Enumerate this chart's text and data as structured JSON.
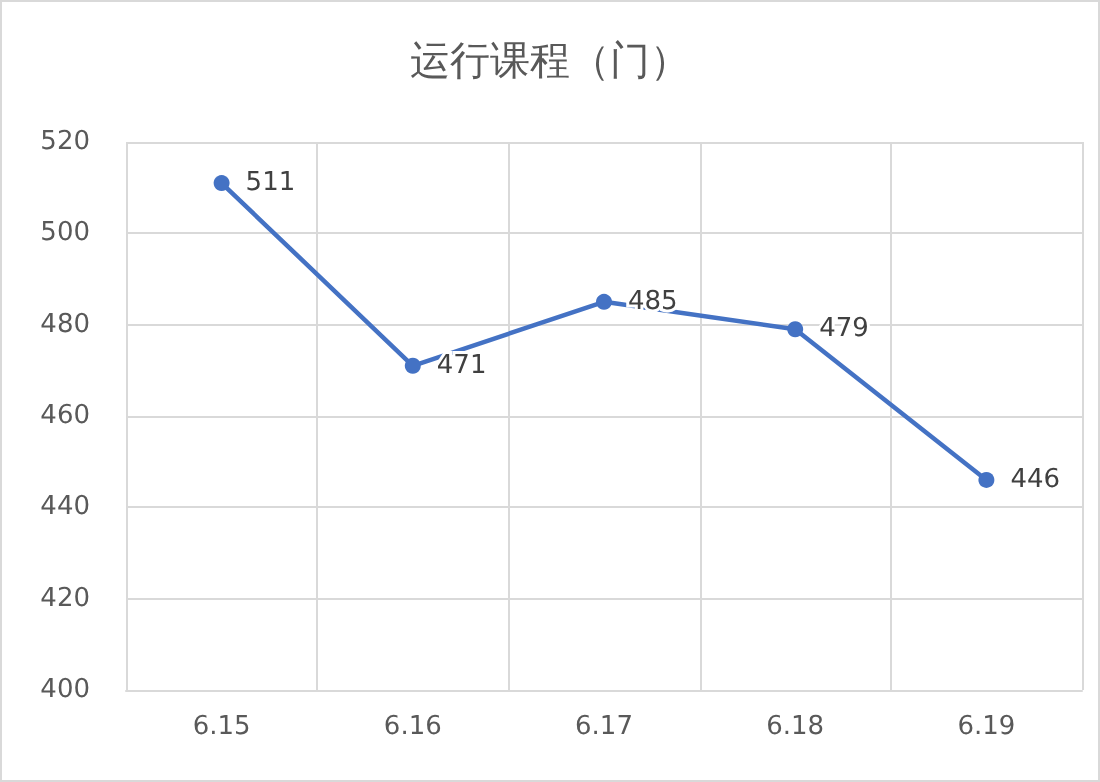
{
  "chart_data": {
    "type": "line",
    "title": "运行课程（门）",
    "categories": [
      "6.15",
      "6.16",
      "6.17",
      "6.18",
      "6.19"
    ],
    "series": [
      {
        "color": "#4472c4",
        "values": [
          511,
          471,
          485,
          479,
          446
        ]
      }
    ],
    "ylim": [
      400,
      520
    ],
    "yticks": [
      400,
      420,
      440,
      460,
      480,
      500,
      520
    ],
    "grid": true,
    "marker": "circle",
    "line_style": "solid",
    "data_labels": true
  }
}
